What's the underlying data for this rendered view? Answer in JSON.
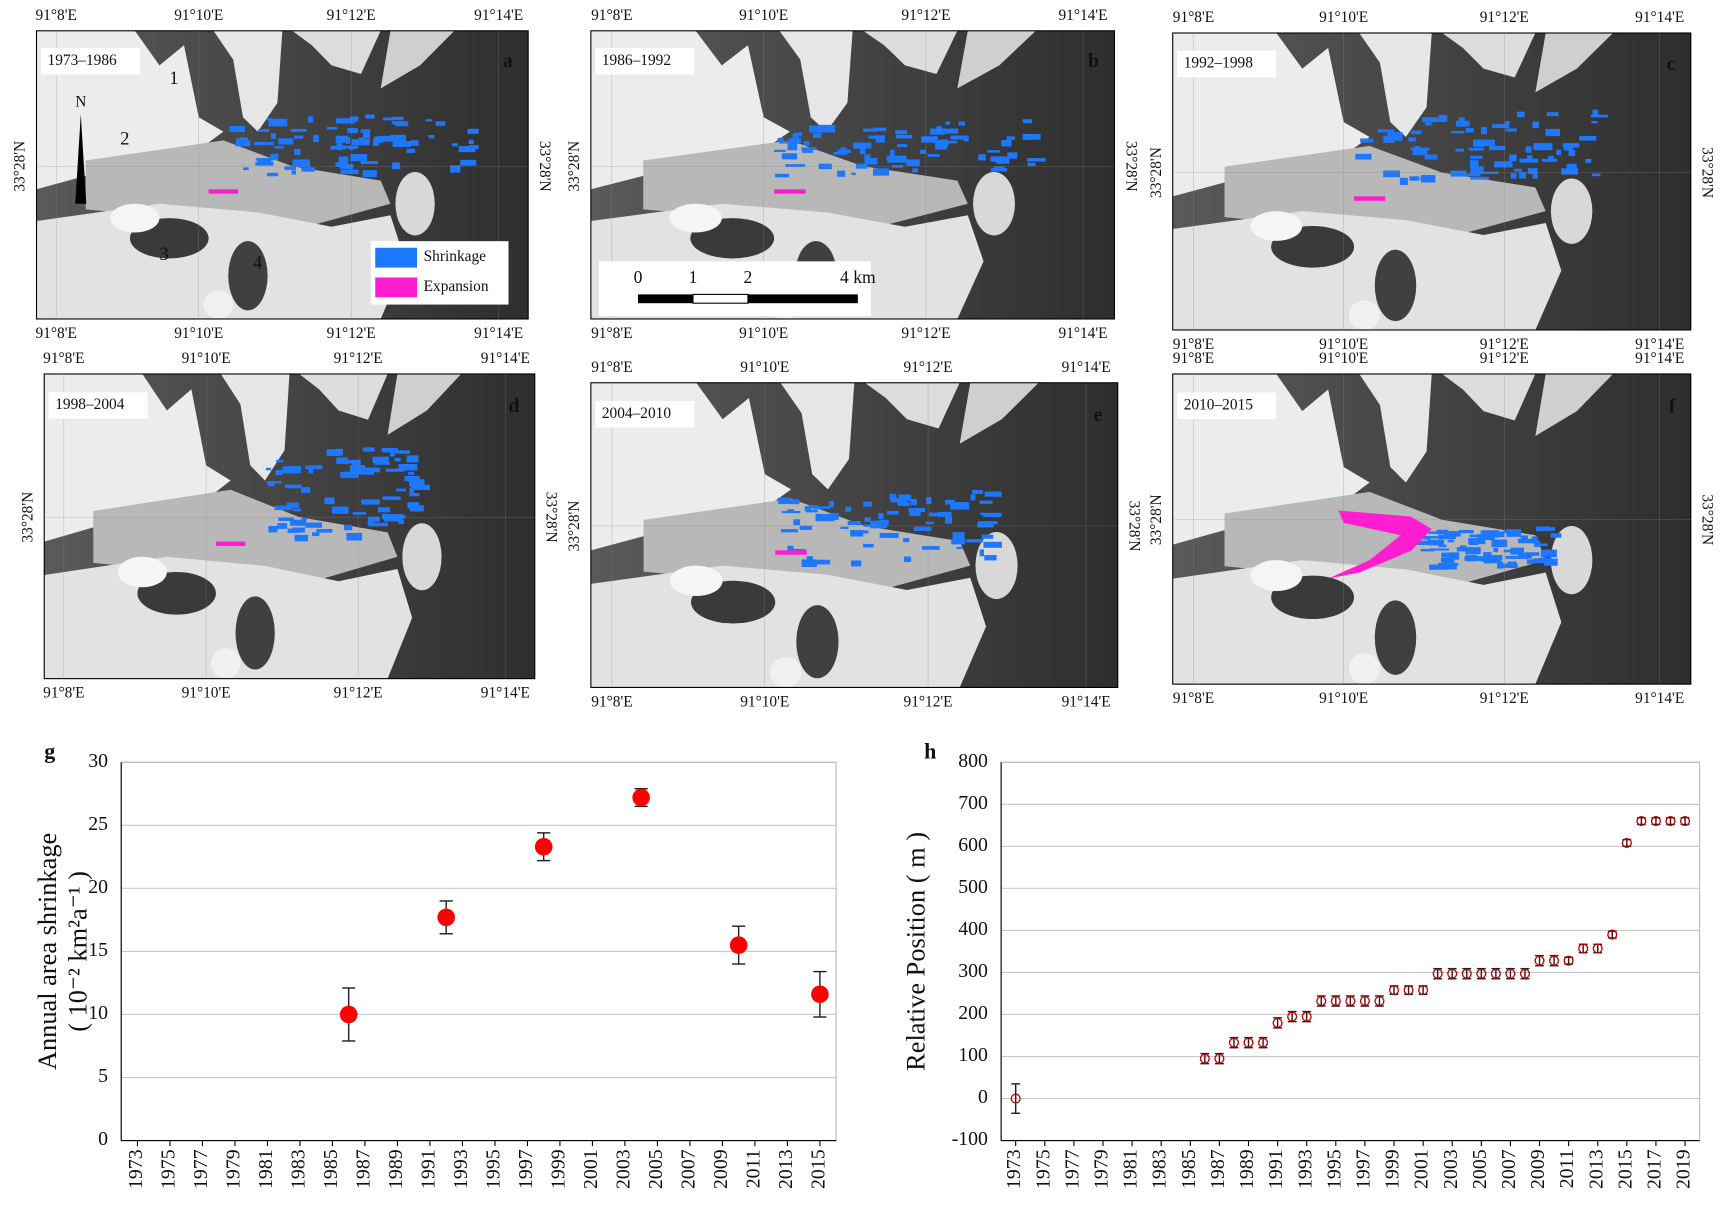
{
  "maps": {
    "lon_labels": [
      "91°8'E",
      "91°10'E",
      "91°12'E",
      "91°14'E"
    ],
    "lat_label": "33°28'N",
    "panels": [
      {
        "letter": "a",
        "period": "1973–1986"
      },
      {
        "letter": "b",
        "period": "1986–1992"
      },
      {
        "letter": "c",
        "period": "1992–1998"
      },
      {
        "letter": "d",
        "period": "1998–2004"
      },
      {
        "letter": "e",
        "period": "2004–2010"
      },
      {
        "letter": "f",
        "period": "2010–2015"
      }
    ],
    "glacier_numbers": [
      "1",
      "2",
      "3",
      "4"
    ],
    "north": "N",
    "legend": [
      {
        "label": "Shrinkage",
        "color": "#1e78ff"
      },
      {
        "label": "Expansion",
        "color": "#ff1ecf"
      }
    ],
    "scale_bar": [
      "0",
      "1",
      "2",
      "4 km"
    ]
  },
  "chart_data": [
    {
      "type": "scatter",
      "panel_label": "g",
      "ylabel": [
        "Annual area shrinkage",
        "( 10⁻² km²a⁻¹ )"
      ],
      "marker": "filled",
      "color": "#ff0000",
      "x": [
        1986,
        1992,
        1998,
        2004,
        2010,
        2015
      ],
      "values": [
        10,
        17.7,
        23.3,
        27.2,
        15.5,
        11.6
      ],
      "errors": [
        2.1,
        1.3,
        1.1,
        0.7,
        1.5,
        1.8
      ],
      "xlim": [
        1972,
        2016
      ],
      "ylim": [
        0,
        30
      ],
      "xticks": [
        1973,
        1975,
        1977,
        1979,
        1981,
        1983,
        1985,
        1987,
        1989,
        1991,
        1993,
        1995,
        1997,
        1999,
        2001,
        2003,
        2005,
        2007,
        2009,
        2011,
        2013,
        2015
      ],
      "yticks": [
        0,
        5,
        10,
        15,
        20,
        25,
        30
      ],
      "grid": true
    },
    {
      "type": "scatter",
      "panel_label": "h",
      "ylabel": [
        "Relative  Position ( m )"
      ],
      "marker": "open",
      "color": "#c00000",
      "x": [
        1973,
        1986,
        1987,
        1988,
        1989,
        1990,
        1991,
        1992,
        1993,
        1994,
        1995,
        1996,
        1997,
        1998,
        1999,
        2000,
        2001,
        2002,
        2003,
        2004,
        2005,
        2006,
        2007,
        2008,
        2009,
        2010,
        2011,
        2012,
        2013,
        2014,
        2015,
        2016,
        2017,
        2018,
        2019
      ],
      "values": [
        0,
        95,
        95,
        133,
        133,
        133,
        180,
        195,
        195,
        232,
        232,
        232,
        232,
        232,
        258,
        258,
        258,
        297,
        297,
        297,
        297,
        297,
        297,
        297,
        328,
        328,
        328,
        357,
        357,
        390,
        608,
        660,
        660,
        660,
        660
      ],
      "errors": [
        35,
        12,
        12,
        12,
        12,
        12,
        12,
        12,
        12,
        12,
        12,
        12,
        12,
        12,
        10,
        10,
        10,
        12,
        12,
        12,
        12,
        12,
        12,
        12,
        12,
        12,
        8,
        10,
        10,
        8,
        8,
        8,
        8,
        8,
        8
      ],
      "xlim": [
        1972,
        2020
      ],
      "ylim": [
        -100,
        800
      ],
      "xticks": [
        1973,
        1975,
        1977,
        1979,
        1981,
        1983,
        1985,
        1987,
        1989,
        1991,
        1993,
        1995,
        1997,
        1999,
        2001,
        2003,
        2005,
        2007,
        2009,
        2011,
        2013,
        2015,
        2017,
        2019
      ],
      "yticks": [
        -100,
        0,
        100,
        200,
        300,
        400,
        500,
        600,
        700,
        800
      ],
      "grid": true
    }
  ]
}
